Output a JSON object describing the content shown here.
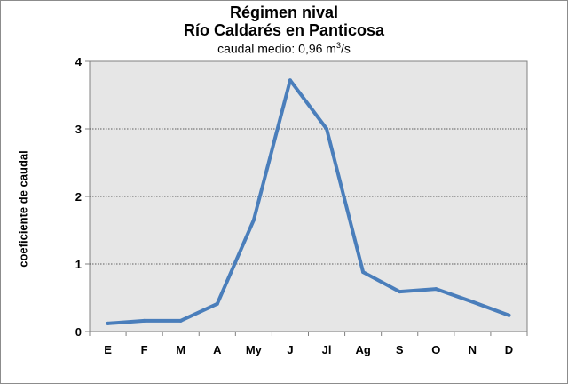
{
  "chart_data": {
    "type": "line",
    "title": "Régimen nival",
    "subtitle": "Río Caldarés en Panticosa",
    "caption_prefix": "caudal medio:  0,96 m",
    "caption_sup": "3",
    "caption_suffix": "/s",
    "xlabel": "",
    "ylabel": "coeficiente de caudal",
    "categories": [
      "E",
      "F",
      "M",
      "A",
      "My",
      "J",
      "Jl",
      "Ag",
      "S",
      "O",
      "N",
      "D"
    ],
    "series": [
      {
        "values": [
          0.12,
          0.16,
          0.16,
          0.41,
          1.65,
          3.72,
          3.0,
          0.88,
          0.59,
          0.63,
          0.44,
          0.24
        ]
      }
    ],
    "ylim": [
      0,
      4
    ],
    "yticks": [
      0,
      1,
      2,
      3,
      4
    ],
    "grid": true,
    "line_color": "#4a7ebb",
    "plot_background": "#e6e6e6"
  }
}
